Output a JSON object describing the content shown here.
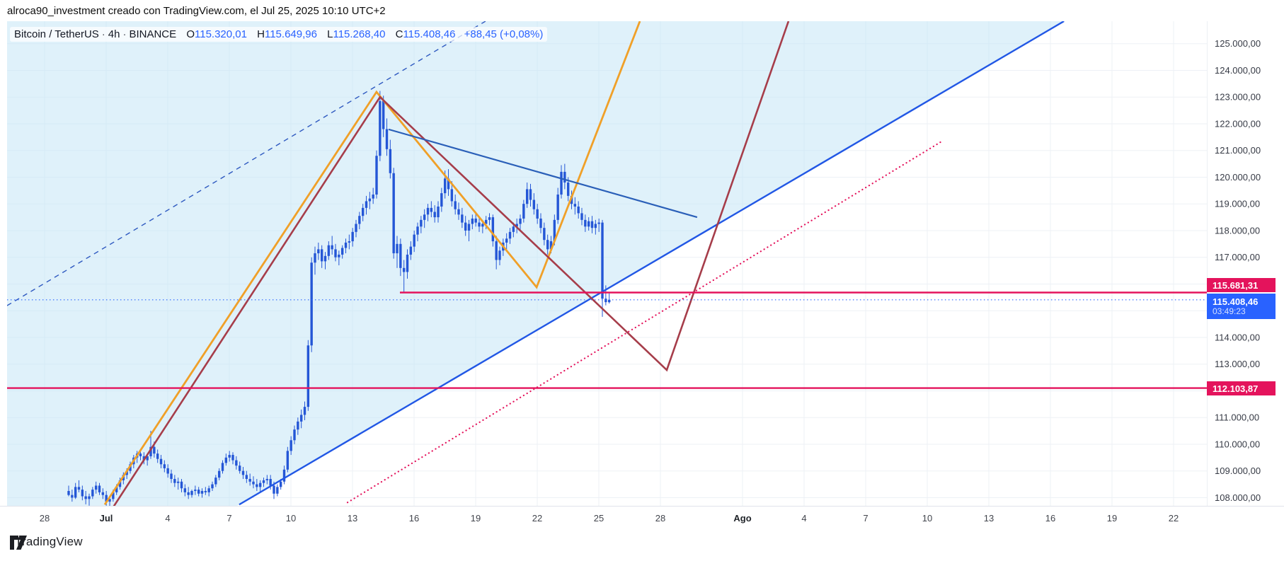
{
  "header": {
    "title": "alroca90_investment creado con TradingView.com, el Jul 25, 2025 10:10 UTC+2"
  },
  "legend": {
    "symbol": "Bitcoin / TetherUS",
    "interval": "4h",
    "exchange": "BINANCE",
    "sep": "·",
    "o_label": "O",
    "o_value": "115.320,01",
    "h_label": "H",
    "h_value": "115.649,96",
    "l_label": "L",
    "l_value": "115.268,40",
    "c_label": "C",
    "c_value": "115.408,46",
    "change": "+88,45 (+0,08%)"
  },
  "watermark": {
    "text": "TradingView"
  },
  "price_axis": {
    "tags": [
      {
        "id": "resistance",
        "text": "115.681,31",
        "price_k": 115.681,
        "color": "#e4135c",
        "align": "above"
      },
      {
        "id": "last-price",
        "text": "115.408,46",
        "sub": "03:49:23",
        "price_k": 115.408,
        "color": "#2962ff",
        "align": "below"
      },
      {
        "id": "support",
        "text": "112.103,87",
        "price_k": 112.104,
        "color": "#e4135c",
        "align": "center"
      }
    ]
  },
  "chart_data": {
    "type": "candlestick",
    "title": "Bitcoin / TetherUS 4h BINANCE",
    "price_unit": "USDT (values in thousands)",
    "ylim_k": [
      107.5,
      125.9
    ],
    "grid": true,
    "y_ticks": [
      {
        "p": 125,
        "label": "125.000,00"
      },
      {
        "p": 124,
        "label": "124.000,00"
      },
      {
        "p": 123,
        "label": "123.000,00"
      },
      {
        "p": 122,
        "label": "122.000,00"
      },
      {
        "p": 121,
        "label": "121.000,00"
      },
      {
        "p": 120,
        "label": "120.000,00"
      },
      {
        "p": 119,
        "label": "119.000,00"
      },
      {
        "p": 118,
        "label": "118.000,00"
      },
      {
        "p": 117,
        "label": "117.000,00"
      },
      {
        "p": 116,
        "label": "116.000,00"
      },
      {
        "p": 115,
        "label": "115.000,00"
      },
      {
        "p": 114,
        "label": "114.000,00"
      },
      {
        "p": 113,
        "label": "113.000,00"
      },
      {
        "p": 112,
        "label": "112.000,00"
      },
      {
        "p": 111,
        "label": "111.000,00"
      },
      {
        "p": 110,
        "label": "110.000,00"
      },
      {
        "p": 109,
        "label": "109.000,00"
      },
      {
        "p": 108,
        "label": "108.000,00"
      }
    ],
    "hidden_y_ticks_under_tags": [
      116,
      115
    ],
    "x_ticks": [
      {
        "label": "28",
        "d": 0
      },
      {
        "label": "Jul",
        "d": 3,
        "bold": true
      },
      {
        "label": "4",
        "d": 6
      },
      {
        "label": "7",
        "d": 9
      },
      {
        "label": "10",
        "d": 12
      },
      {
        "label": "13",
        "d": 15
      },
      {
        "label": "16",
        "d": 18
      },
      {
        "label": "19",
        "d": 21
      },
      {
        "label": "22",
        "d": 24
      },
      {
        "label": "25",
        "d": 27
      },
      {
        "label": "28",
        "d": 30
      },
      {
        "label": "Ago",
        "d": 34,
        "bold": true
      },
      {
        "label": "4",
        "d": 37
      },
      {
        "label": "7",
        "d": 40
      },
      {
        "label": "10",
        "d": 43
      },
      {
        "label": "13",
        "d": 46
      },
      {
        "label": "16",
        "d": 49
      },
      {
        "label": "19",
        "d": 52
      },
      {
        "label": "22",
        "d": 55
      }
    ],
    "candle_colors": {
      "body": "#2456d6",
      "wick": "#2456d6"
    },
    "start_d": 1.1724,
    "step_d": 0.16667,
    "candles": [
      [
        108.25,
        108.45,
        108.05,
        108.1
      ],
      [
        108.1,
        108.3,
        107.85,
        108.0
      ],
      [
        108.0,
        108.55,
        107.95,
        108.4
      ],
      [
        108.4,
        108.65,
        108.2,
        108.3
      ],
      [
        108.3,
        108.45,
        107.9,
        108.05
      ],
      [
        108.05,
        108.25,
        107.75,
        107.95
      ],
      [
        107.95,
        108.15,
        107.7,
        108.05
      ],
      [
        108.05,
        108.4,
        107.95,
        108.3
      ],
      [
        108.3,
        108.6,
        108.15,
        108.45
      ],
      [
        108.45,
        108.55,
        108.1,
        108.2
      ],
      [
        108.2,
        108.35,
        107.95,
        108.1
      ],
      [
        108.1,
        108.25,
        107.7,
        107.85
      ],
      [
        107.85,
        108.05,
        107.6,
        107.95
      ],
      [
        107.95,
        108.3,
        107.85,
        108.2
      ],
      [
        108.2,
        108.5,
        108.1,
        108.4
      ],
      [
        108.4,
        108.75,
        108.3,
        108.65
      ],
      [
        108.65,
        108.95,
        108.5,
        108.85
      ],
      [
        108.85,
        109.1,
        108.7,
        109.0
      ],
      [
        109.0,
        109.35,
        108.9,
        109.25
      ],
      [
        109.25,
        109.6,
        109.1,
        109.5
      ],
      [
        109.5,
        109.75,
        109.3,
        109.65
      ],
      [
        109.65,
        109.8,
        109.4,
        109.55
      ],
      [
        109.55,
        109.7,
        109.25,
        109.4
      ],
      [
        109.4,
        109.65,
        109.2,
        109.55
      ],
      [
        109.55,
        110.5,
        109.45,
        109.9
      ],
      [
        109.9,
        110.1,
        109.5,
        109.65
      ],
      [
        109.65,
        109.8,
        109.3,
        109.45
      ],
      [
        109.45,
        109.6,
        109.1,
        109.25
      ],
      [
        109.25,
        109.4,
        108.95,
        109.1
      ],
      [
        109.1,
        109.25,
        108.75,
        108.9
      ],
      [
        108.9,
        109.05,
        108.55,
        108.7
      ],
      [
        108.7,
        108.85,
        108.4,
        108.55
      ],
      [
        108.55,
        108.75,
        108.3,
        108.6
      ],
      [
        108.6,
        108.7,
        108.2,
        108.35
      ],
      [
        108.35,
        108.5,
        108.05,
        108.2
      ],
      [
        108.2,
        108.4,
        107.95,
        108.1
      ],
      [
        108.1,
        108.3,
        108.0,
        108.25
      ],
      [
        108.25,
        108.45,
        108.1,
        108.3
      ],
      [
        108.3,
        108.4,
        108.05,
        108.15
      ],
      [
        108.15,
        108.35,
        108.0,
        108.25
      ],
      [
        108.25,
        108.4,
        108.1,
        108.2
      ],
      [
        108.2,
        108.45,
        108.05,
        108.35
      ],
      [
        108.35,
        108.6,
        108.25,
        108.5
      ],
      [
        108.5,
        108.85,
        108.4,
        108.75
      ],
      [
        108.75,
        109.1,
        108.65,
        109.0
      ],
      [
        109.0,
        109.4,
        108.9,
        109.3
      ],
      [
        109.3,
        109.65,
        109.2,
        109.5
      ],
      [
        109.5,
        109.75,
        109.35,
        109.6
      ],
      [
        109.6,
        109.7,
        109.25,
        109.4
      ],
      [
        109.4,
        109.55,
        109.05,
        109.2
      ],
      [
        109.2,
        109.35,
        108.9,
        109.0
      ],
      [
        109.0,
        109.15,
        108.7,
        108.85
      ],
      [
        108.85,
        109.0,
        108.55,
        108.7
      ],
      [
        108.7,
        108.9,
        108.45,
        108.6
      ],
      [
        108.6,
        108.8,
        108.35,
        108.5
      ],
      [
        108.5,
        108.7,
        108.25,
        108.4
      ],
      [
        108.4,
        108.65,
        108.2,
        108.55
      ],
      [
        108.55,
        108.75,
        108.4,
        108.65
      ],
      [
        108.65,
        108.85,
        108.5,
        108.7
      ],
      [
        108.7,
        108.85,
        108.3,
        108.45
      ],
      [
        108.45,
        108.6,
        107.95,
        108.15
      ],
      [
        108.15,
        108.5,
        108.05,
        108.4
      ],
      [
        108.4,
        108.7,
        108.3,
        108.6
      ],
      [
        108.6,
        109.2,
        108.5,
        109.05
      ],
      [
        109.05,
        109.9,
        108.95,
        109.75
      ],
      [
        109.75,
        110.3,
        109.6,
        110.15
      ],
      [
        110.15,
        110.7,
        110.0,
        110.55
      ],
      [
        110.55,
        111.0,
        110.35,
        110.85
      ],
      [
        110.85,
        111.3,
        110.6,
        111.1
      ],
      [
        111.1,
        111.6,
        110.9,
        111.4
      ],
      [
        111.4,
        113.9,
        111.25,
        113.7
      ],
      [
        113.7,
        117.0,
        113.45,
        116.8
      ],
      [
        116.8,
        117.4,
        116.35,
        117.15
      ],
      [
        117.15,
        117.55,
        116.9,
        117.3
      ],
      [
        117.3,
        117.45,
        116.6,
        116.85
      ],
      [
        116.85,
        117.2,
        116.55,
        117.05
      ],
      [
        117.05,
        117.6,
        116.9,
        117.45
      ],
      [
        117.45,
        117.8,
        117.1,
        117.3
      ],
      [
        117.3,
        117.5,
        116.85,
        117.0
      ],
      [
        117.0,
        117.25,
        116.7,
        117.1
      ],
      [
        117.1,
        117.45,
        116.95,
        117.35
      ],
      [
        117.35,
        117.7,
        117.15,
        117.55
      ],
      [
        117.55,
        117.85,
        117.3,
        117.6
      ],
      [
        117.6,
        118.1,
        117.4,
        117.95
      ],
      [
        117.95,
        118.4,
        117.75,
        118.25
      ],
      [
        118.25,
        118.7,
        118.05,
        118.55
      ],
      [
        118.55,
        119.0,
        118.35,
        118.85
      ],
      [
        118.85,
        119.3,
        118.6,
        119.1
      ],
      [
        119.1,
        119.45,
        118.8,
        119.2
      ],
      [
        119.2,
        119.6,
        119.0,
        119.35
      ],
      [
        119.35,
        121.0,
        119.2,
        120.8
      ],
      [
        120.8,
        123.23,
        120.6,
        122.85
      ],
      [
        122.85,
        123.05,
        121.5,
        121.8
      ],
      [
        121.8,
        122.2,
        120.8,
        121.05
      ],
      [
        121.05,
        121.4,
        119.95,
        120.15
      ],
      [
        120.15,
        120.35,
        116.95,
        117.15
      ],
      [
        117.15,
        117.8,
        116.6,
        117.5
      ],
      [
        117.5,
        117.7,
        116.3,
        116.6
      ],
      [
        116.6,
        116.9,
        115.68,
        116.45
      ],
      [
        116.45,
        117.3,
        116.2,
        117.1
      ],
      [
        117.1,
        117.6,
        116.9,
        117.4
      ],
      [
        117.4,
        118.0,
        117.2,
        117.85
      ],
      [
        117.85,
        118.3,
        117.6,
        118.15
      ],
      [
        118.15,
        118.55,
        117.9,
        118.4
      ],
      [
        118.4,
        118.8,
        118.1,
        118.6
      ],
      [
        118.6,
        119.0,
        118.35,
        118.85
      ],
      [
        118.85,
        119.1,
        118.5,
        118.7
      ],
      [
        118.7,
        118.95,
        118.3,
        118.5
      ],
      [
        118.5,
        119.1,
        118.3,
        118.9
      ],
      [
        118.9,
        119.6,
        118.7,
        119.4
      ],
      [
        119.4,
        120.25,
        119.2,
        119.95
      ],
      [
        119.95,
        120.3,
        119.3,
        119.55
      ],
      [
        119.55,
        119.85,
        118.9,
        119.1
      ],
      [
        119.1,
        119.35,
        118.6,
        118.8
      ],
      [
        118.8,
        119.05,
        118.4,
        118.6
      ],
      [
        118.6,
        118.85,
        118.1,
        118.3
      ],
      [
        118.3,
        118.55,
        117.8,
        118.0
      ],
      [
        118.0,
        118.4,
        117.6,
        118.25
      ],
      [
        118.25,
        118.6,
        118.05,
        118.45
      ],
      [
        118.45,
        118.7,
        118.15,
        118.3
      ],
      [
        118.3,
        118.5,
        117.95,
        118.15
      ],
      [
        118.15,
        118.4,
        117.9,
        118.25
      ],
      [
        118.25,
        118.55,
        118.05,
        118.4
      ],
      [
        118.4,
        118.65,
        118.2,
        118.5
      ],
      [
        118.5,
        118.6,
        117.4,
        117.6
      ],
      [
        117.6,
        117.8,
        116.55,
        116.9
      ],
      [
        116.9,
        117.4,
        116.7,
        117.25
      ],
      [
        117.25,
        117.7,
        117.05,
        117.55
      ],
      [
        117.55,
        117.9,
        117.3,
        117.7
      ],
      [
        117.7,
        118.1,
        117.5,
        117.95
      ],
      [
        117.95,
        118.3,
        117.75,
        118.15
      ],
      [
        118.15,
        118.45,
        117.9,
        118.25
      ],
      [
        118.25,
        118.6,
        118.0,
        118.45
      ],
      [
        118.45,
        119.15,
        118.3,
        119.0
      ],
      [
        119.0,
        119.8,
        118.85,
        119.55
      ],
      [
        119.55,
        119.75,
        118.9,
        119.15
      ],
      [
        119.15,
        119.4,
        118.6,
        118.8
      ],
      [
        118.8,
        119.0,
        118.25,
        118.45
      ],
      [
        118.45,
        118.65,
        117.9,
        118.1
      ],
      [
        118.1,
        118.3,
        117.45,
        117.65
      ],
      [
        117.65,
        117.85,
        117.1,
        117.3
      ],
      [
        117.3,
        117.8,
        117.15,
        117.6
      ],
      [
        117.6,
        118.6,
        117.45,
        118.4
      ],
      [
        118.4,
        119.6,
        118.25,
        119.35
      ],
      [
        119.35,
        120.45,
        119.2,
        120.2
      ],
      [
        120.2,
        120.5,
        119.55,
        119.8
      ],
      [
        119.8,
        120.0,
        119.1,
        119.3
      ],
      [
        119.3,
        119.5,
        118.8,
        119.0
      ],
      [
        119.0,
        119.25,
        118.6,
        118.9
      ],
      [
        118.9,
        119.1,
        118.45,
        118.65
      ],
      [
        118.65,
        118.85,
        118.2,
        118.4
      ],
      [
        118.4,
        118.6,
        117.95,
        118.15
      ],
      [
        118.15,
        118.5,
        118.0,
        118.35
      ],
      [
        118.35,
        118.55,
        117.9,
        118.1
      ],
      [
        118.1,
        118.4,
        117.85,
        118.25
      ],
      [
        118.25,
        118.45,
        117.95,
        118.3
      ],
      [
        118.3,
        118.4,
        114.77,
        115.45
      ],
      [
        115.45,
        115.95,
        115.2,
        115.32
      ],
      [
        115.32,
        115.65,
        115.27,
        115.41
      ]
    ],
    "drawings": [
      {
        "id": "channel-fill",
        "type": "fill",
        "color": "#bfe3f5",
        "opacity": 0.5
      },
      {
        "id": "channel-median-dashed-line",
        "type": "polyline",
        "style": "dashed",
        "color": "#2e59c0",
        "width": 1.4,
        "points": [
          {
            "d": -1.83,
            "p": 115.19
          },
          {
            "d": 21.48,
            "p": 125.84
          }
        ]
      },
      {
        "id": "ascending-channel-lower-line",
        "type": "polyline",
        "style": "solid",
        "color": "#2157e5",
        "width": 2.4,
        "points": [
          {
            "d": 9.48,
            "p": 107.74
          },
          {
            "d": 49.66,
            "p": 125.84
          }
        ]
      },
      {
        "id": "orange-zigzag-pattern",
        "type": "polyline",
        "style": "solid",
        "color": "#f0a028",
        "width": 2.8,
        "points": [
          {
            "d": 2.93,
            "p": 107.74
          },
          {
            "d": 16.17,
            "p": 123.19
          },
          {
            "d": 23.97,
            "p": 115.88
          },
          {
            "d": 29.0,
            "p": 125.84
          }
        ]
      },
      {
        "id": "red-zigzag-pattern",
        "type": "polyline",
        "style": "solid",
        "color": "#a63d4a",
        "width": 2.6,
        "points": [
          {
            "d": 3.34,
            "p": 107.64
          },
          {
            "d": 16.34,
            "p": 123.0
          },
          {
            "d": 30.31,
            "p": 112.78
          },
          {
            "d": 36.24,
            "p": 125.84
          }
        ]
      },
      {
        "id": "descending-trendline",
        "type": "polyline",
        "style": "solid",
        "color": "#2a5fb8",
        "width": 2.2,
        "points": [
          {
            "d": 16.76,
            "p": 121.79
          },
          {
            "d": 31.79,
            "p": 118.5
          }
        ]
      },
      {
        "id": "pink-dotted-ray",
        "type": "polyline",
        "style": "dotted",
        "color": "#e4135c",
        "width": 2.2,
        "points": [
          {
            "d": 14.76,
            "p": 107.82
          },
          {
            "d": 43.79,
            "p": 121.38
          }
        ]
      },
      {
        "id": "resistance-hline",
        "type": "polyline",
        "style": "solid",
        "color": "#e4135c",
        "width": 2.4,
        "points": [
          {
            "d": 17.31,
            "p": 115.681
          },
          {
            "d": 56.62,
            "p": 115.681
          }
        ]
      },
      {
        "id": "support-hline",
        "type": "polyline",
        "style": "solid",
        "color": "#e4135c",
        "width": 2.4,
        "points": [
          {
            "d": -1.83,
            "p": 112.104
          },
          {
            "d": 56.62,
            "p": 112.104
          }
        ]
      },
      {
        "id": "current-price-dotted-line",
        "type": "polyline",
        "style": "fine-dotted",
        "color": "#2962ff",
        "width": 1.2,
        "points": [
          {
            "d": -1.83,
            "p": 115.408
          },
          {
            "d": 56.62,
            "p": 115.408
          }
        ]
      }
    ]
  }
}
